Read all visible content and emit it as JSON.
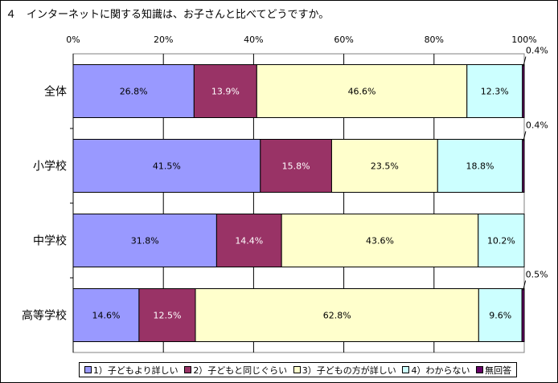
{
  "chart_data": {
    "type": "bar",
    "orientation": "horizontal",
    "stacked": true,
    "percent_stacked": true,
    "title": "４　インターネットに関する知識は、お子さんと比べてどうですか。",
    "categories": [
      "全体",
      "小学校",
      "中学校",
      "高等学校"
    ],
    "x_ticks": [
      "0%",
      "20%",
      "40%",
      "60%",
      "80%",
      "100%"
    ],
    "xlim": [
      0,
      100
    ],
    "grid": true,
    "legend_position": "bottom",
    "series": [
      {
        "name": "1）子どもより詳しい",
        "color": "#9999ff",
        "values": [
          26.8,
          41.5,
          31.8,
          14.6
        ],
        "labels": [
          "26.8%",
          "41.5%",
          "31.8%",
          "14.6%"
        ]
      },
      {
        "name": "2）子どもと同じぐらい",
        "color": "#993366",
        "values": [
          13.9,
          15.8,
          14.4,
          12.5
        ],
        "labels": [
          "13.9%",
          "15.8%",
          "14.4%",
          "12.5%"
        ]
      },
      {
        "name": "3）子どもの方が詳しい",
        "color": "#ffffcc",
        "values": [
          46.6,
          23.5,
          43.6,
          62.8
        ],
        "labels": [
          "46.6%",
          "23.5%",
          "43.6%",
          "62.8%"
        ]
      },
      {
        "name": "4）わからない",
        "color": "#ccffff",
        "values": [
          12.3,
          18.8,
          10.2,
          9.6
        ],
        "labels": [
          "12.3%",
          "18.8%",
          "10.2%",
          "9.6%"
        ]
      },
      {
        "name": "無回答",
        "color": "#660066",
        "values": [
          0.4,
          0.4,
          0.0,
          0.5
        ],
        "labels": [
          "0.4%",
          "0.4%",
          "",
          "0.5%"
        ]
      }
    ]
  }
}
